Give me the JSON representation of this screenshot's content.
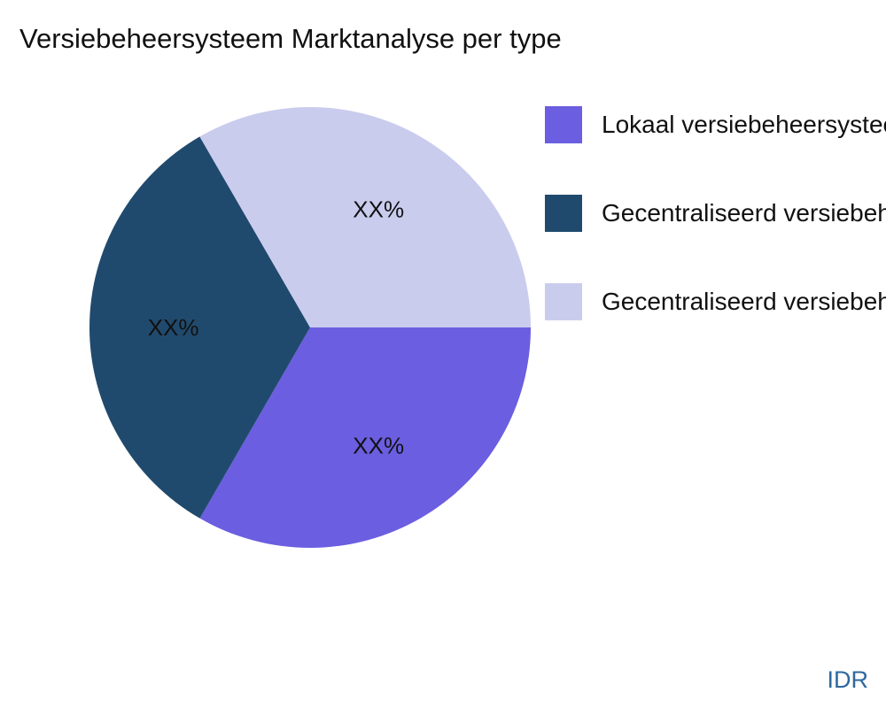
{
  "page": {
    "background": "#ffffff"
  },
  "title": "Versiebeheersysteem Marktanalyse per type",
  "watermark": {
    "text": "IDR",
    "color": "#2E689E"
  },
  "chart_data": {
    "type": "pie",
    "title": "Versiebeheersysteem Marktanalyse per type",
    "labels": [
      "Lokaal versiebeheersysteem",
      "Gecentraliseerd versiebeheersysteem",
      "Gecentraliseerd versiebeheersysteem"
    ],
    "values": [
      33.33,
      33.33,
      33.34
    ],
    "slice_labels": [
      "XX%",
      "XX%",
      "XX%"
    ],
    "colors": [
      "#6B5EE0",
      "#204A6D",
      "#CACCEE"
    ],
    "start_angle_deg": 0,
    "direction": "clockwise",
    "label_radius_fraction": 0.62,
    "legend_position": "right"
  }
}
